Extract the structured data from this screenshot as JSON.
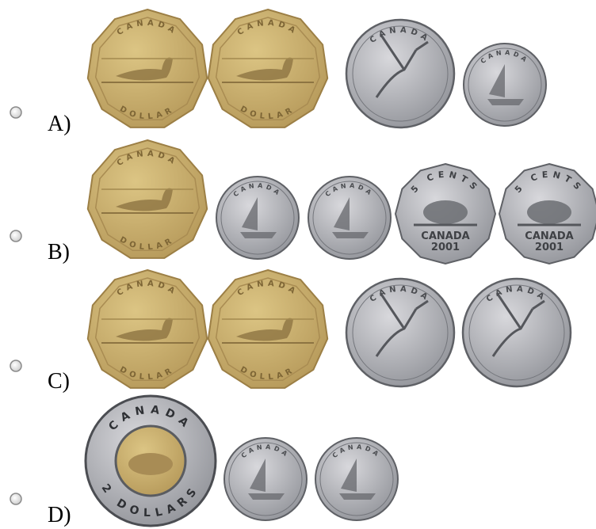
{
  "options": [
    {
      "label": "A)",
      "coins": [
        {
          "texts": [
            "CANADA",
            "DOLLAR"
          ]
        },
        {
          "texts": [
            "CANADA",
            "DOLLAR"
          ]
        },
        {
          "texts": [
            "CANADA"
          ]
        },
        {
          "texts": [
            "CANADA"
          ]
        }
      ]
    },
    {
      "label": "B)",
      "coins": [
        {
          "texts": [
            "CANADA",
            "DOLLAR"
          ]
        },
        {
          "texts": [
            "CANADA"
          ]
        },
        {
          "texts": [
            "CANADA"
          ]
        },
        {
          "texts": [
            "5 CENTS",
            "CANADA",
            "2001"
          ]
        },
        {
          "texts": [
            "5 CENTS",
            "CANADA",
            "2001"
          ]
        }
      ]
    },
    {
      "label": "C)",
      "coins": [
        {
          "texts": [
            "CANADA",
            "DOLLAR"
          ]
        },
        {
          "texts": [
            "CANADA",
            "DOLLAR"
          ]
        },
        {
          "texts": [
            "CANADA"
          ]
        },
        {
          "texts": [
            "CANADA"
          ]
        }
      ]
    },
    {
      "label": "D)",
      "coins": [
        {
          "texts": [
            "CANADA",
            "2 DOLLARS"
          ]
        },
        {
          "texts": [
            "CANADA"
          ]
        },
        {
          "texts": [
            "CANADA"
          ]
        }
      ]
    }
  ]
}
